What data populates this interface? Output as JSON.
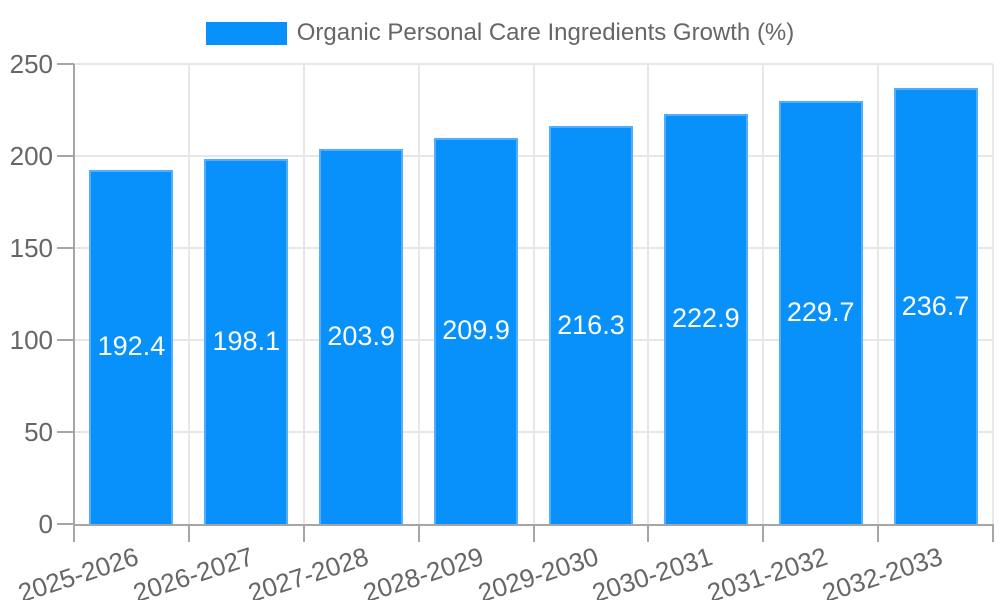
{
  "chart_data": {
    "type": "bar",
    "legend_label": "Organic Personal Care Ingredients Growth (%)",
    "legend_position": "top",
    "categories": [
      "2025-2026",
      "2026-2027",
      "2027-2028",
      "2028-2029",
      "2029-2030",
      "2030-2031",
      "2031-2032",
      "2032-2033"
    ],
    "values": [
      192.4,
      198.1,
      203.9,
      209.9,
      216.3,
      222.9,
      229.7,
      236.7
    ],
    "value_labels_visible": true,
    "ylim": [
      0,
      250
    ],
    "yticks": [
      0,
      50,
      100,
      150,
      200,
      250
    ],
    "xlabel": "",
    "ylabel": "",
    "grid": true,
    "x_label_rotation_deg": -18,
    "colors": {
      "bar_fill": "#0890fb",
      "bar_border": "#52aefc",
      "value_label": "#ffffff",
      "axis_text": "#666666",
      "grid_line": "#e7e7e7",
      "axis_line": "#a6a6a6",
      "background": "#ffffff"
    }
  }
}
